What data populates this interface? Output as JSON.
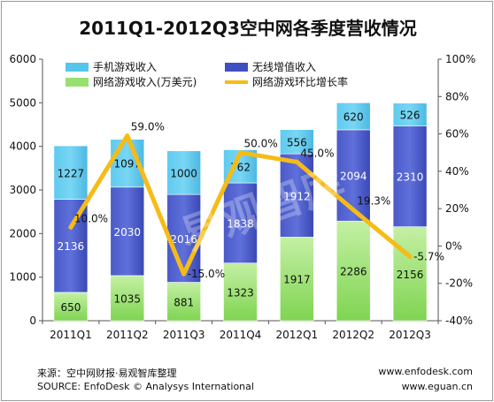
{
  "title": "2011Q1-2012Q3空中网各季度营收情况",
  "footer": {
    "source_cn": "来源：空中网财报·易观智库整理",
    "source_en": "SOURCE: EnfoDesk © Analysys  International",
    "url1": "www.enfodesk.com",
    "url2": "www.eguan.cn"
  },
  "watermark": "易观智库",
  "colors": {
    "mobile_games": "#55c6ea",
    "wireless_vas": "#3f4fbf",
    "online_games": "#98e070",
    "growth_line": "#f6bb16"
  },
  "chart_data": {
    "type": "bar",
    "stacked": true,
    "categories": [
      "2011Q1",
      "2011Q2",
      "2011Q3",
      "2011Q4",
      "2012Q1",
      "2012Q2",
      "2012Q3"
    ],
    "series": [
      {
        "name": "网络游戏收入(万美元)",
        "values": [
          650,
          1035,
          881,
          1323,
          1917,
          2286,
          2156
        ]
      },
      {
        "name": "无线增值收入",
        "values": [
          2136,
          2030,
          2016,
          1838,
          1912,
          2094,
          2310
        ]
      },
      {
        "name": "手机游戏收入",
        "values": [
          1227,
          1097,
          1000,
          762,
          556,
          620,
          526
        ]
      }
    ],
    "line_series": {
      "name": "网络游戏环比增长率",
      "values": [
        10.0,
        59.0,
        -15.0,
        50.0,
        45.0,
        19.3,
        -5.7
      ],
      "labels": [
        "10.0%",
        "59.0%",
        "-15.0%",
        "50.0%",
        "45.0%",
        "19.3%",
        "-5.7%"
      ]
    },
    "y_left": {
      "ylim": [
        0,
        6000
      ],
      "ticks": [
        "0",
        "1000",
        "2000",
        "3000",
        "4000",
        "5000",
        "6000"
      ]
    },
    "y_right": {
      "ylim": [
        -40,
        100
      ],
      "ticks": [
        "-40%",
        "-20%",
        "0%",
        "20%",
        "40%",
        "60%",
        "80%",
        "100%"
      ]
    },
    "legend": {
      "position": "top",
      "items": [
        "手机游戏收入",
        "无线增值收入",
        "网络游戏收入(万美元)",
        "网络游戏环比增长率"
      ]
    }
  }
}
